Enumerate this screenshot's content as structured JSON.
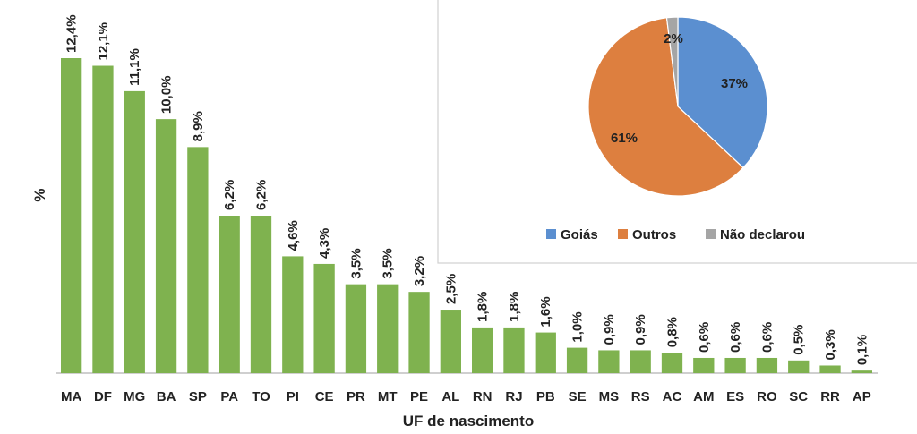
{
  "chart_data": [
    {
      "type": "bar",
      "title": "",
      "xlabel": "UF de nascimento",
      "ylabel": "%",
      "ylim": [
        0,
        13
      ],
      "grid": false,
      "bar_color": "#7fb24f",
      "categories": [
        "MA",
        "DF",
        "MG",
        "BA",
        "SP",
        "PA",
        "TO",
        "PI",
        "CE",
        "PR",
        "MT",
        "PE",
        "AL",
        "RN",
        "RJ",
        "PB",
        "SE",
        "MS",
        "RS",
        "AC",
        "AM",
        "ES",
        "RO",
        "SC",
        "RR",
        "AP"
      ],
      "values": [
        12.4,
        12.1,
        11.1,
        10.0,
        8.9,
        6.2,
        6.2,
        4.6,
        4.3,
        3.5,
        3.5,
        3.2,
        2.5,
        1.8,
        1.8,
        1.6,
        1.0,
        0.9,
        0.9,
        0.8,
        0.6,
        0.6,
        0.6,
        0.5,
        0.3,
        0.1
      ],
      "value_labels": [
        "12,4%",
        "12,1%",
        "11,1%",
        "10,0%",
        "8,9%",
        "6,2%",
        "6,2%",
        "4,6%",
        "4,3%",
        "3,5%",
        "3,5%",
        "3,2%",
        "2,5%",
        "1,8%",
        "1,8%",
        "1,6%",
        "1,0%",
        "0,9%",
        "0,9%",
        "0,8%",
        "0,6%",
        "0,6%",
        "0,6%",
        "0,5%",
        "0,3%",
        "0,1%"
      ]
    },
    {
      "type": "pie",
      "title": "",
      "legend_position": "bottom",
      "slices": [
        {
          "label": "Goiás",
          "value": 37,
          "value_label": "37%",
          "color": "#5b8fd0"
        },
        {
          "label": "Outros",
          "value": 61,
          "value_label": "61%",
          "color": "#dd7f3f"
        },
        {
          "label": "Não declarou",
          "value": 2,
          "value_label": "2%",
          "color": "#a5a5a5"
        }
      ]
    }
  ]
}
